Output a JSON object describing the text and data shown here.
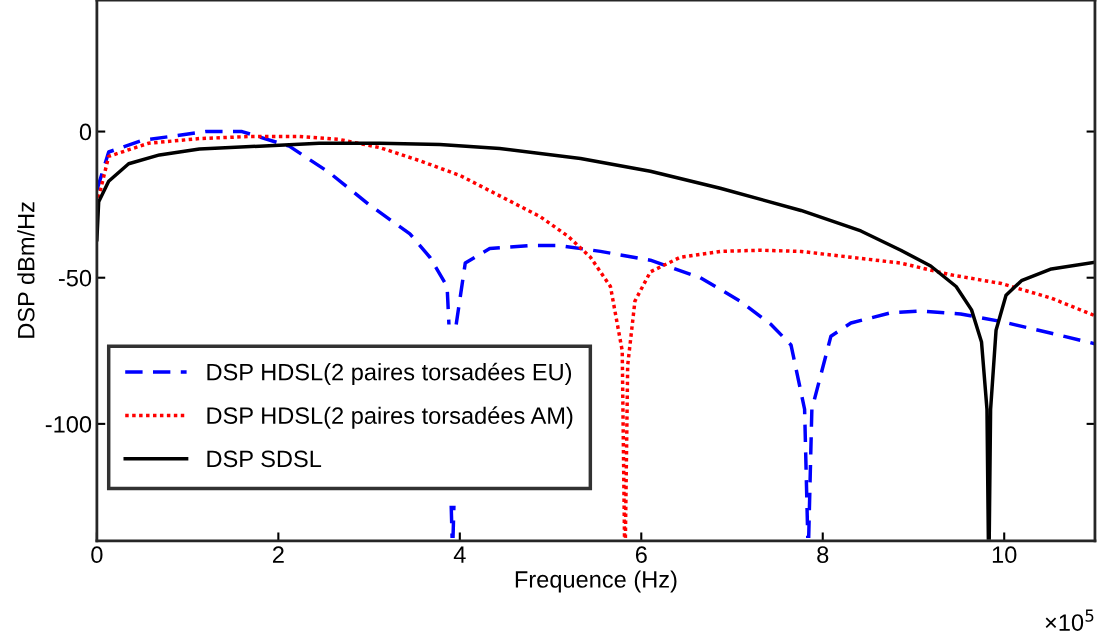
{
  "chart_data": {
    "type": "line",
    "xlabel": "Frequence (Hz)",
    "ylabel": "DSP dBm/Hz",
    "xlim": [
      0,
      11
    ],
    "ylim": [
      -140,
      45
    ],
    "xticks": [
      0,
      2,
      4,
      6,
      8,
      10
    ],
    "yticks": [
      -100,
      -50,
      0
    ],
    "annotations": [
      "×10$^{5}$"
    ],
    "legend": "lower left",
    "grid": false,
    "series": [
      {
        "name": "DSP HDSL(2 paires torsadées EU)",
        "color": "#0000ff",
        "line_style": "dashed",
        "x": [
          0,
          0.13,
          0.5,
          1.2,
          1.6,
          2.12,
          2.56,
          3.0,
          3.45,
          3.67,
          3.86,
          3.88,
          3.9,
          3.905,
          3.915,
          3.92,
          3.925,
          3.935,
          3.94,
          3.96,
          4.06,
          4.33,
          4.77,
          5.1,
          5.55,
          6.1,
          6.65,
          7.09,
          7.43,
          7.65,
          7.8,
          7.835,
          7.84,
          7.845,
          7.88,
          8.09,
          8.31,
          8.75,
          9.08,
          9.52,
          9.97,
          10.52,
          11.0
        ],
        "values": [
          -20,
          -7,
          -3,
          0,
          0,
          -5,
          -14,
          -25,
          -35,
          -43,
          -53,
          -66,
          null,
          -128,
          -139,
          null,
          -139,
          -128,
          null,
          -66,
          -45,
          -40,
          -39,
          -39,
          -41,
          -44,
          -50,
          -58,
          -66,
          -73,
          -95,
          -139,
          null,
          -139,
          -95,
          -70,
          -65.5,
          -62,
          -61.4,
          -62.4,
          -65,
          -69,
          -72.6
        ]
      },
      {
        "name": "DSP HDSL(2 paires torsadées AM)",
        "color": "#ff0000",
        "line_style": "dotted",
        "x": [
          0,
          0.13,
          0.57,
          1.13,
          1.68,
          2.23,
          2.67,
          3.12,
          3.56,
          4.0,
          4.44,
          4.88,
          5.2,
          5.44,
          5.66,
          5.79,
          5.815,
          5.82,
          5.825,
          5.85,
          5.93,
          6.1,
          6.43,
          6.87,
          7.31,
          7.76,
          8.31,
          8.86,
          9.41,
          9.97,
          10.52,
          11.0
        ],
        "values": [
          -25,
          -8.5,
          -4,
          -2.4,
          -1.7,
          -1.7,
          -2.7,
          -5.5,
          -10,
          -15,
          -22,
          -29,
          -36,
          -43,
          -53,
          -75,
          -139,
          null,
          -139,
          -80,
          -58,
          -48,
          -43,
          -41,
          -40.6,
          -41,
          -43,
          -45,
          -49,
          -52,
          -57,
          -63
        ]
      },
      {
        "name": "DSP SDSL",
        "color": "#000000",
        "line_style": "solid",
        "x": [
          0,
          0.02,
          0.13,
          0.35,
          0.69,
          1.13,
          1.79,
          2.45,
          3.12,
          3.78,
          4.44,
          5.33,
          6.1,
          6.87,
          7.76,
          8.42,
          8.86,
          9.19,
          9.47,
          9.64,
          9.75,
          9.81,
          9.825,
          9.83,
          9.835,
          9.85,
          9.91,
          10.02,
          10.19,
          10.52,
          11.0
        ],
        "values": [
          -37,
          -24,
          -17,
          -11,
          -8,
          -6,
          -5,
          -4,
          -4,
          -4.4,
          -5.8,
          -9.2,
          -13.6,
          -19.4,
          -27,
          -34,
          -40.6,
          -46,
          -53,
          -61,
          -72,
          -95,
          -139,
          null,
          -139,
          -95,
          -68,
          -56,
          -51,
          -47,
          -44.7
        ]
      }
    ]
  }
}
